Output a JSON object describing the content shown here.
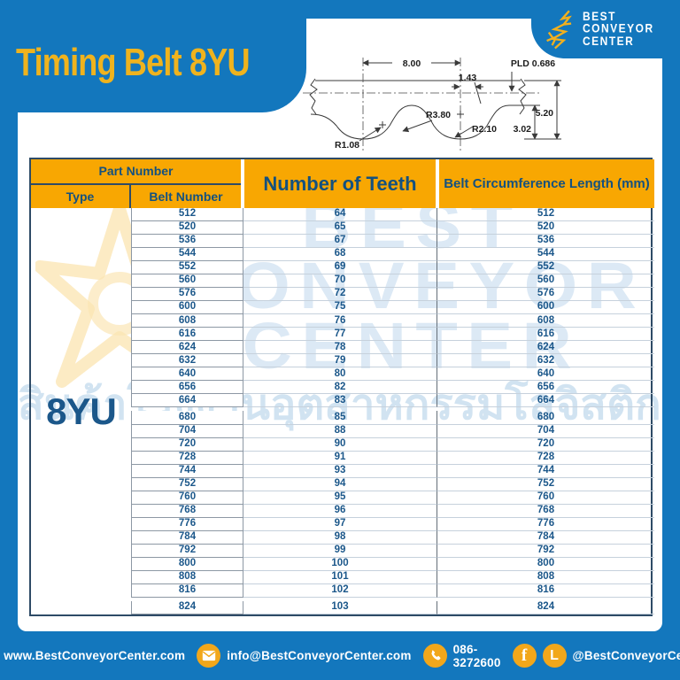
{
  "page": {
    "title": "Timing Belt 8YU"
  },
  "brand": {
    "line1": "BEST",
    "line2": "CONVEYOR",
    "line3": "CENTER"
  },
  "diagram": {
    "pitch": "8.00",
    "tip_width": "1.43",
    "pld": "PLD 0.686",
    "total_height": "5.20",
    "tooth_depth": "3.02",
    "radius_flank": "R3.80",
    "radius_shoulder": "R1.08",
    "radius_root": "R2.10"
  },
  "table": {
    "headers": {
      "part_number": "Part Number",
      "type": "Type",
      "belt_number": "Belt Number",
      "teeth": "Number of Teeth",
      "length": "Belt Circumference Length (mm)"
    },
    "type_value": "8YU",
    "group_breaks_after": [
      14,
      28
    ],
    "rows": [
      [
        "512",
        "64",
        "512"
      ],
      [
        "520",
        "65",
        "520"
      ],
      [
        "536",
        "67",
        "536"
      ],
      [
        "544",
        "68",
        "544"
      ],
      [
        "552",
        "69",
        "552"
      ],
      [
        "560",
        "70",
        "560"
      ],
      [
        "576",
        "72",
        "576"
      ],
      [
        "600",
        "75",
        "600"
      ],
      [
        "608",
        "76",
        "608"
      ],
      [
        "616",
        "77",
        "616"
      ],
      [
        "624",
        "78",
        "624"
      ],
      [
        "632",
        "79",
        "632"
      ],
      [
        "640",
        "80",
        "640"
      ],
      [
        "656",
        "82",
        "656"
      ],
      [
        "664",
        "83",
        "664"
      ],
      [
        "680",
        "85",
        "680"
      ],
      [
        "704",
        "88",
        "704"
      ],
      [
        "720",
        "90",
        "720"
      ],
      [
        "728",
        "91",
        "728"
      ],
      [
        "744",
        "93",
        "744"
      ],
      [
        "752",
        "94",
        "752"
      ],
      [
        "760",
        "95",
        "760"
      ],
      [
        "768",
        "96",
        "768"
      ],
      [
        "776",
        "97",
        "776"
      ],
      [
        "784",
        "98",
        "784"
      ],
      [
        "792",
        "99",
        "792"
      ],
      [
        "800",
        "100",
        "800"
      ],
      [
        "808",
        "101",
        "808"
      ],
      [
        "816",
        "102",
        "816"
      ],
      [
        "824",
        "103",
        "824"
      ]
    ]
  },
  "watermark": {
    "lines": [
      "BEST",
      "CONVEYOR",
      "CENTER"
    ],
    "thai": "สินค้าโรงงานอุตสาหกรรมโลจิสติกส์"
  },
  "footer": {
    "website": "www.BestConveyorCenter.com",
    "email": "info@BestConveyorCenter.com",
    "phone": "086-3272600",
    "social": "@BestConveyorCenter",
    "facebook_glyph": "f",
    "line_glyph": "L"
  },
  "colors": {
    "blue": "#1377BD",
    "yellow": "#EFB31E",
    "orange": "#F8A702",
    "navy": "#1B578A"
  }
}
